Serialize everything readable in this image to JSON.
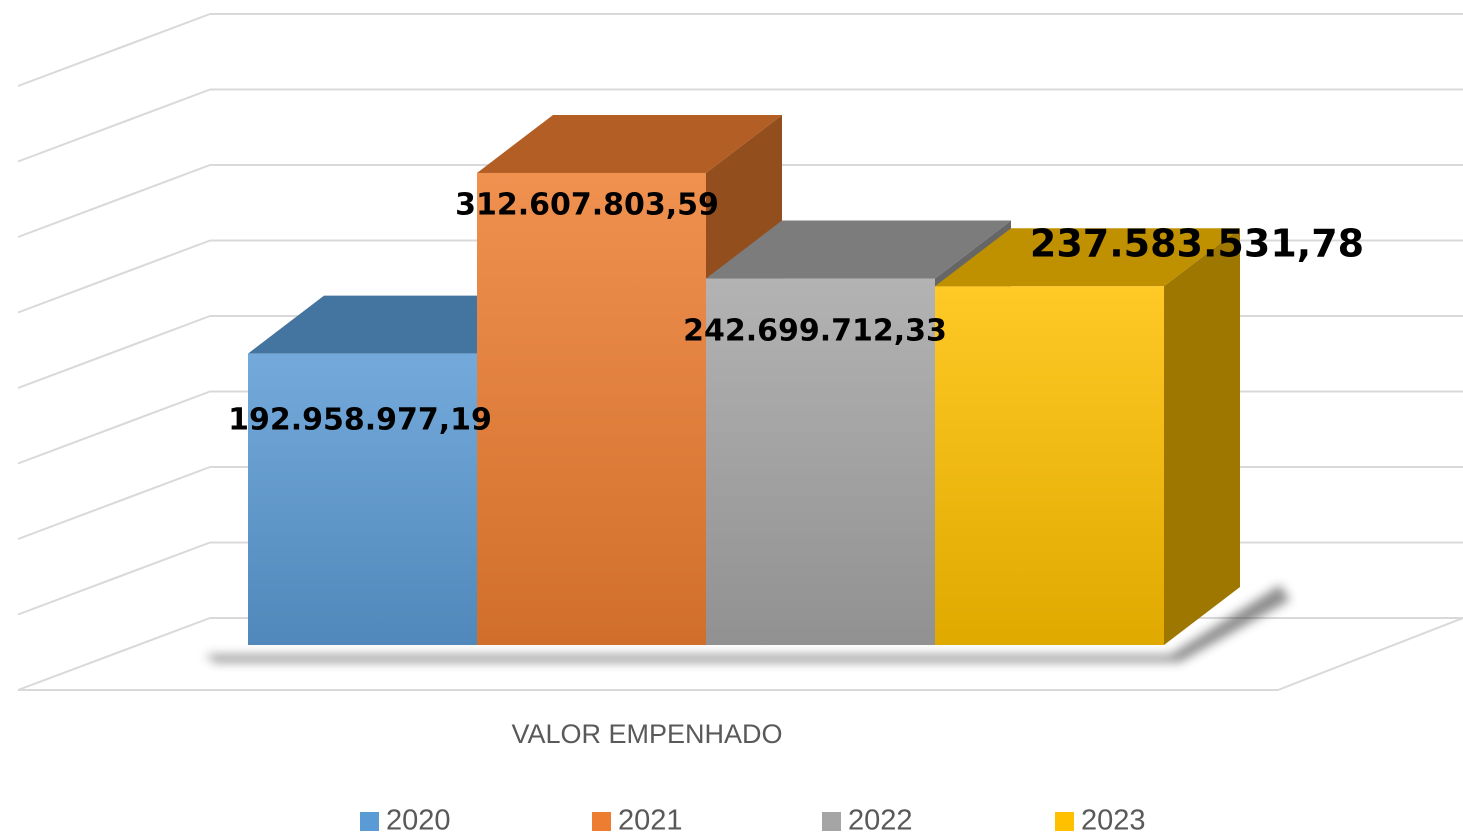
{
  "chart_data": {
    "type": "bar3d",
    "categories": [
      "VALOR EMPENHADO"
    ],
    "series": [
      {
        "name": "2020",
        "color": "#5b9bd5",
        "values": [
          192958977.19
        ],
        "value_labels": [
          "192.958.977,19"
        ]
      },
      {
        "name": "2021",
        "color": "#ed7d31",
        "values": [
          312607803.59
        ],
        "value_labels": [
          "312.607.803,59"
        ]
      },
      {
        "name": "2022",
        "color": "#a5a5a5",
        "values": [
          242699712.33
        ],
        "value_labels": [
          "242.699.712,33"
        ]
      },
      {
        "name": "2023",
        "color": "#ffc000",
        "values": [
          237583531.78
        ],
        "value_labels": [
          "237.583.531,78"
        ]
      }
    ],
    "ylim": [
      0,
      400000000
    ],
    "yticks": [
      0,
      50000000,
      100000000,
      150000000,
      200000000,
      250000000,
      300000000,
      350000000,
      400000000
    ],
    "grid": true,
    "legend": "bottom"
  }
}
